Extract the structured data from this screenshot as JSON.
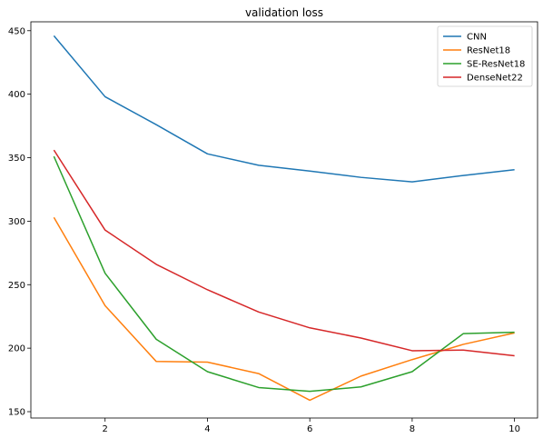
{
  "chart_data": {
    "type": "line",
    "title": "validation loss",
    "xlabel": "",
    "ylabel": "",
    "x": [
      1,
      2,
      3,
      4,
      5,
      6,
      7,
      8,
      9,
      10
    ],
    "xlim": [
      0.55,
      10.45
    ],
    "ylim": [
      145,
      457
    ],
    "xticks": [
      2,
      4,
      6,
      8,
      10
    ],
    "yticks": [
      150,
      200,
      250,
      300,
      350,
      400,
      450
    ],
    "grid": false,
    "legend_position": "top-right",
    "series": [
      {
        "name": "CNN",
        "color": "#1f77b4",
        "values": [
          446,
          398,
          376,
          353,
          344,
          339.5,
          334.5,
          331,
          336,
          340.5
        ]
      },
      {
        "name": "ResNet18",
        "color": "#ff7f0e",
        "values": [
          303,
          233.5,
          189.5,
          189,
          180,
          159,
          178,
          191,
          203,
          212
        ]
      },
      {
        "name": "SE-ResNet18",
        "color": "#2ca02c",
        "values": [
          351,
          259,
          207,
          181.5,
          169,
          166,
          169.5,
          181.5,
          211.5,
          212.5
        ]
      },
      {
        "name": "DenseNet22",
        "color": "#d62728",
        "values": [
          356,
          293,
          266,
          246,
          228.5,
          216,
          208,
          198,
          198.5,
          194
        ]
      }
    ]
  }
}
